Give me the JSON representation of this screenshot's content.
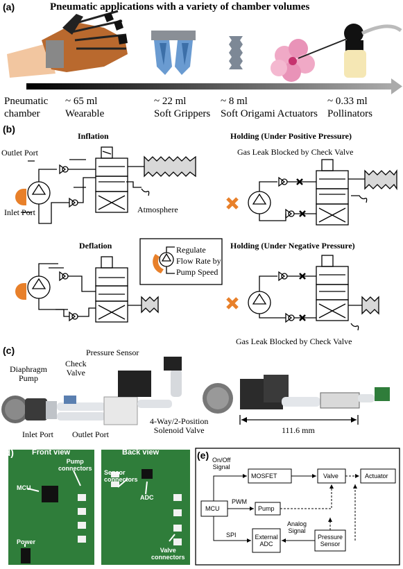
{
  "panel_a": {
    "letter": "(a)",
    "title": "Pneumatic applications with a variety of chamber volumes",
    "axis_start": [
      "Pneumatic",
      "chamber"
    ],
    "items": [
      {
        "volume": "~ 65 ml",
        "name": "Wearable"
      },
      {
        "volume": "~ 22 ml",
        "name": "Soft Grippers"
      },
      {
        "volume": "~ 8 ml",
        "name": "Soft Origami Actuators"
      },
      {
        "volume": "~ 0.33 ml",
        "name": "Pollinators"
      }
    ]
  },
  "panel_b": {
    "letter": "(b)",
    "inflation_title": "Inflation",
    "deflation_title": "Deflation",
    "holding_pos_title": "Holding (Under Positive Pressure)",
    "holding_neg_title": "Holding (Under Negative Pressure)",
    "gas_leak_top": "Gas Leak Blocked by Check Valve",
    "gas_leak_bottom": "Gas Leak Blocked by Check Valve",
    "outlet_port": "Outlet Port",
    "inlet_port": "Inlet Port",
    "atmosphere": "Atmosphere",
    "legend": [
      "Regulate",
      "Flow Rate by",
      "Pump Speed"
    ]
  },
  "panel_c": {
    "letter": "(c)",
    "diaphragm_pump": [
      "Diaphragm",
      "Pump"
    ],
    "check_valve": [
      "Check",
      "Valve"
    ],
    "pressure_sensor": "Pressure Sensor",
    "inlet_port": "Inlet Port",
    "outlet_port": "Outlet Port",
    "solenoid": [
      "4-Way/2-Position",
      "Solenoid Valve"
    ],
    "length": "111.6 mm"
  },
  "panel_d": {
    "letter": "(d)",
    "front_view": "Front view",
    "back_view": "Back view",
    "pump_connectors": [
      "Pump",
      "connectors"
    ],
    "mcu": "MCU",
    "power": "Power",
    "sensor_connectors": [
      "Sensor",
      "connectors"
    ],
    "adc": "ADC",
    "valve_connectors": [
      "Valve",
      "connectors"
    ]
  },
  "panel_e": {
    "letter": "(e)",
    "on_off": [
      "On/Off",
      "Signal"
    ],
    "mosfet": "MOSFET",
    "valve": "Valve",
    "actuator": "Actuator",
    "mcu": "MCU",
    "pwm": "PWM",
    "pump": "Pump",
    "spi": "SPI",
    "analog": [
      "Analog",
      "Signal"
    ],
    "external_adc": [
      "External",
      "ADC"
    ],
    "pressure_sensor": [
      "Pressure",
      "Sensor"
    ]
  },
  "colors": {
    "orange": "#e8802a",
    "chamber_fill": "#d8d8d8",
    "pcb_green": "#2f7d3a",
    "arrow_grad_end": "#9a9a9a"
  }
}
